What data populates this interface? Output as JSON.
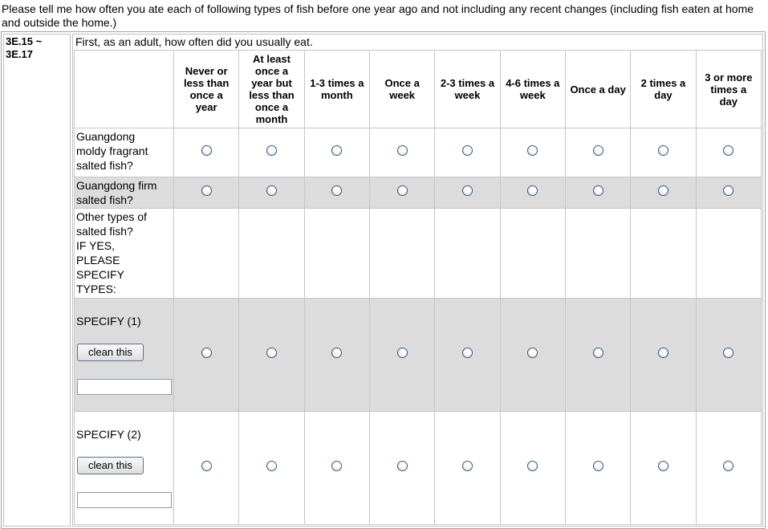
{
  "intro": "Please tell me how often you ate each of following types of fish before one year ago and not including any recent changes (including fish eaten at home and outside the home.)",
  "question_range": "3E.15 ~\n3E.17",
  "main": {
    "question": "First, as an adult, how often did you usually eat.",
    "columns": [
      "Never or\nless than\nonce a\nyear",
      "At least\nonce a\nyear but\nless than\nonce a\nmonth",
      "1-3 times a\nmonth",
      "Once a\nweek",
      "2-3 times a\nweek",
      "4-6 times a\nweek",
      "Once a day",
      "2 times a\nday",
      "3 or more\ntimes a\nday"
    ],
    "rows": [
      {
        "label": "Guangdong\nmoldy fragrant\nsalted fish?",
        "type": "radio-row",
        "shaded": false,
        "selected": null
      },
      {
        "label": "Guangdong firm\nsalted fish?",
        "type": "radio-row",
        "shaded": true,
        "selected": null
      },
      {
        "label": "Other types of\nsalted fish?\nIF YES,\nPLEASE\nSPECIFY\nTYPES:",
        "type": "label-only",
        "shaded": false
      },
      {
        "label": "SPECIFY (1)",
        "type": "specify-row",
        "shaded": true,
        "selected": null,
        "button_label": "clean this",
        "input_value": ""
      },
      {
        "label": "SPECIFY (2)",
        "type": "specify-row",
        "shaded": false,
        "selected": null,
        "button_label": "clean this",
        "input_value": ""
      }
    ]
  },
  "colors": {
    "shaded_row": "#dcdcdc",
    "grid_border": "#c6c6c6",
    "outer_border": "#a3a3a3",
    "radio_ring": "#2d567f",
    "input_border": "#7f9db9"
  }
}
